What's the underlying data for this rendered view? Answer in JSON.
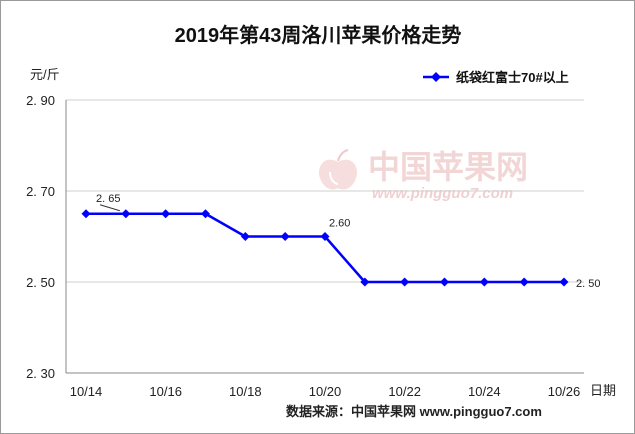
{
  "chart_data": {
    "type": "line",
    "title": "2019年第43周洛川苹果价格走势",
    "ylabel": "元/斤",
    "xlabel": "日期",
    "ylim": [
      2.3,
      2.9
    ],
    "yticks": [
      "2. 90",
      "2. 70",
      "2. 50",
      "2. 30"
    ],
    "ytick_values": [
      2.9,
      2.7,
      2.5,
      2.3
    ],
    "x_tick_labels": [
      "10/14",
      "10/16",
      "10/18",
      "10/20",
      "10/22",
      "10/24",
      "10/26"
    ],
    "grid": true,
    "legend_position": "top-right",
    "series": [
      {
        "name": "纸袋红富士70#以上",
        "color": "#0000ff",
        "values": [
          2.65,
          2.65,
          2.65,
          2.65,
          2.6,
          2.6,
          2.6,
          2.5,
          2.5,
          2.5,
          2.5,
          2.5,
          2.5
        ]
      }
    ],
    "annotations": [
      {
        "point_index": 0,
        "text": "2. 65"
      },
      {
        "point_index": 6,
        "text": "2.60"
      },
      {
        "point_index": 12,
        "text": "2. 50"
      }
    ]
  },
  "watermark": {
    "name": "中国苹果网",
    "url": "www.pingguo7.com"
  },
  "source": "数据来源：中国苹果网 www.pingguo7.com"
}
